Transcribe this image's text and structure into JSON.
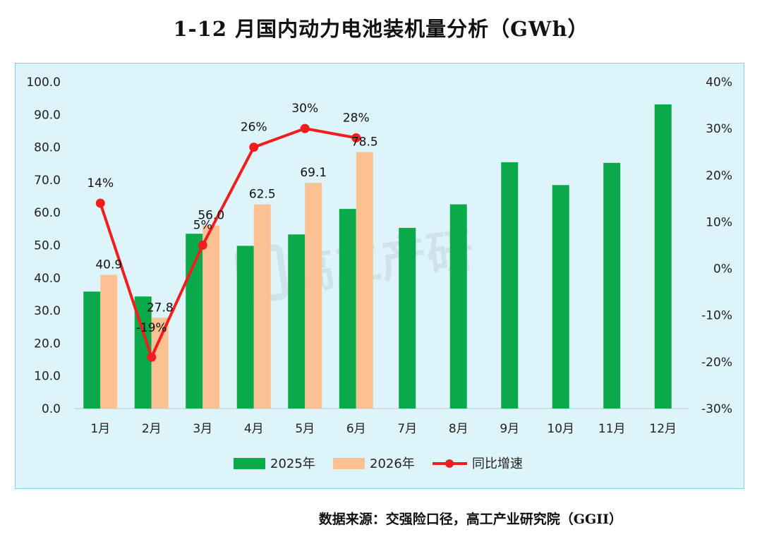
{
  "title": "1-12 月国内动力电池装机量分析（GWh）",
  "source": "数据来源：交强险口径，高工产业研究院（GGII）",
  "watermark": "高工产研",
  "colors": {
    "series2025": "#0aaa4a",
    "series2026": "#fbc193",
    "yoy": "#f21d1d",
    "panel": "#def4fb"
  },
  "chart_data": {
    "type": "bar",
    "title": "1-12 月国内动力电池装机量分析（GWh）",
    "categories": [
      "1月",
      "2月",
      "3月",
      "4月",
      "5月",
      "6月",
      "7月",
      "8月",
      "9月",
      "10月",
      "11月",
      "12月"
    ],
    "y_left": {
      "min": 0,
      "max": 100,
      "ticks": [
        "0.0",
        "10.0",
        "20.0",
        "30.0",
        "40.0",
        "50.0",
        "60.0",
        "70.0",
        "80.0",
        "90.0",
        "100.0"
      ]
    },
    "y_right": {
      "min": -30,
      "max": 40,
      "ticks": [
        "-30%",
        "-20%",
        "-10%",
        "0%",
        "10%",
        "20%",
        "30%",
        "40%"
      ]
    },
    "series": [
      {
        "name": "2025年",
        "type": "bar",
        "values": [
          35.8,
          34.3,
          53.5,
          49.8,
          53.3,
          61.1,
          55.3,
          62.5,
          75.4,
          68.4,
          75.2,
          93.1
        ]
      },
      {
        "name": "2026年",
        "type": "bar",
        "values": [
          40.9,
          27.8,
          56.0,
          62.5,
          69.1,
          78.5,
          null,
          null,
          null,
          null,
          null,
          null
        ],
        "labels": [
          "40.9",
          "27.8",
          "56.0",
          "62.5",
          "69.1",
          "78.5"
        ]
      },
      {
        "name": "同比增速",
        "type": "line",
        "axis": "right",
        "values": [
          14,
          -19,
          5,
          26,
          30,
          28,
          null,
          null,
          null,
          null,
          null,
          null
        ],
        "labels": [
          "14%",
          "-19%",
          "5%",
          "26%",
          "30%",
          "28%"
        ]
      }
    ],
    "legend_position": "bottom-center",
    "grid": false
  }
}
